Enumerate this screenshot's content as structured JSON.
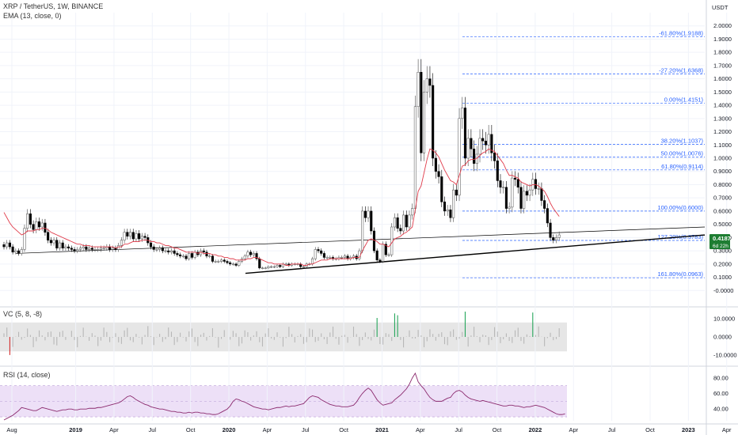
{
  "header": {
    "title": "XRP / TetherUS, 1W, BINANCE",
    "indicator": "EMA (13, close, 0)",
    "price_unit": "USDT"
  },
  "colors": {
    "up": "#4c4c4c",
    "down": "#000000",
    "ema": "#e03b4a",
    "fib": "#2962ff",
    "trend": "#000000",
    "vc_band": "#e6e6e6",
    "vc_up": "#26a65b",
    "vc_down": "#d32f2f",
    "rsi_band": "#ede0f7",
    "rsi_line": "#8b2a6e",
    "price_tag": "#1e7d32"
  },
  "price_tag": {
    "price": "0.4187",
    "countdown": "6d 22h"
  },
  "panes": {
    "vc": {
      "title": "VC (5, 8, -8)"
    },
    "rsi": {
      "title": "RSI (14, close)"
    }
  },
  "chart_data": [
    {
      "type": "candlestick",
      "title": "XRP / TetherUS, 1W, BINANCE",
      "y_unit": "USDT",
      "ylim": [
        -0.1,
        2.1
      ],
      "y_ticks": [
        "2.0000",
        "1.9000",
        "1.8000",
        "1.7000",
        "1.6000",
        "1.5000",
        "1.4000",
        "1.3000",
        "1.2000",
        "1.1000",
        "1.0000",
        "0.9000",
        "0.8000",
        "0.7000",
        "0.6000",
        "0.5000",
        "0.4000",
        "0.3000",
        "0.2000",
        "0.1000",
        "-0.0000"
      ],
      "x_ticks": [
        "Aug",
        "2019",
        "Apr",
        "Jul",
        "Oct",
        "2020",
        "Apr",
        "Jul",
        "Oct",
        "2021",
        "Apr",
        "Jul",
        "Oct",
        "2022",
        "Apr",
        "Jul",
        "Oct",
        "2023",
        "Apr"
      ],
      "x_start": "2018-08",
      "interval": "1W",
      "close": [
        0.33,
        0.36,
        0.33,
        0.29,
        0.3,
        0.28,
        0.31,
        0.47,
        0.58,
        0.5,
        0.46,
        0.52,
        0.48,
        0.51,
        0.44,
        0.38,
        0.36,
        0.38,
        0.32,
        0.36,
        0.32,
        0.33,
        0.32,
        0.31,
        0.3,
        0.31,
        0.32,
        0.33,
        0.31,
        0.32,
        0.31,
        0.31,
        0.31,
        0.32,
        0.32,
        0.33,
        0.31,
        0.32,
        0.31,
        0.34,
        0.38,
        0.44,
        0.41,
        0.44,
        0.39,
        0.43,
        0.39,
        0.41,
        0.4,
        0.36,
        0.33,
        0.31,
        0.31,
        0.32,
        0.3,
        0.3,
        0.29,
        0.3,
        0.28,
        0.27,
        0.26,
        0.26,
        0.24,
        0.28,
        0.25,
        0.29,
        0.27,
        0.3,
        0.29,
        0.26,
        0.26,
        0.22,
        0.22,
        0.22,
        0.23,
        0.22,
        0.21,
        0.2,
        0.2,
        0.19,
        0.22,
        0.24,
        0.26,
        0.29,
        0.27,
        0.28,
        0.24,
        0.17,
        0.17,
        0.17,
        0.18,
        0.18,
        0.18,
        0.19,
        0.18,
        0.2,
        0.2,
        0.19,
        0.2,
        0.2,
        0.2,
        0.18,
        0.18,
        0.2,
        0.2,
        0.24,
        0.31,
        0.3,
        0.28,
        0.25,
        0.25,
        0.25,
        0.24,
        0.24,
        0.25,
        0.25,
        0.26,
        0.24,
        0.25,
        0.26,
        0.24,
        0.3,
        0.6,
        0.55,
        0.6,
        0.45,
        0.3,
        0.23,
        0.22,
        0.35,
        0.27,
        0.27,
        0.48,
        0.55,
        0.47,
        0.45,
        0.57,
        0.48,
        0.57,
        0.62,
        1.39,
        1.65,
        1.04,
        1.5,
        1.6,
        1.55,
        1.0,
        0.9,
        0.86,
        0.67,
        0.6,
        0.61,
        0.55,
        0.76,
        0.72,
        1.3,
        1.38,
        1.0,
        1.15,
        1.07,
        0.96,
        1.03,
        1.15,
        1.13,
        1.1,
        1.18,
        1.04,
        0.98,
        0.83,
        0.78,
        0.78,
        0.62,
        0.63,
        0.85,
        0.84,
        0.78,
        0.62,
        0.75,
        0.72,
        0.76,
        0.84,
        0.77,
        0.77,
        0.68,
        0.62,
        0.51,
        0.4,
        0.38,
        0.4,
        0.42
      ],
      "ema": {
        "name": "EMA (13, close, 0)",
        "values": [
          0.59,
          0.55,
          0.51,
          0.48,
          0.46,
          0.44,
          0.42,
          0.43,
          0.45,
          0.45,
          0.45,
          0.46,
          0.46,
          0.47,
          0.47,
          0.46,
          0.44,
          0.43,
          0.42,
          0.41,
          0.4,
          0.39,
          0.38,
          0.37,
          0.36,
          0.35,
          0.35,
          0.34,
          0.34,
          0.34,
          0.33,
          0.33,
          0.33,
          0.33,
          0.33,
          0.33,
          0.33,
          0.33,
          0.32,
          0.33,
          0.33,
          0.35,
          0.35,
          0.36,
          0.37,
          0.37,
          0.37,
          0.38,
          0.38,
          0.38,
          0.37,
          0.37,
          0.36,
          0.36,
          0.35,
          0.34,
          0.34,
          0.33,
          0.32,
          0.32,
          0.31,
          0.3,
          0.29,
          0.29,
          0.29,
          0.29,
          0.28,
          0.29,
          0.28,
          0.28,
          0.28,
          0.27,
          0.27,
          0.26,
          0.26,
          0.25,
          0.25,
          0.24,
          0.24,
          0.23,
          0.23,
          0.23,
          0.23,
          0.24,
          0.24,
          0.25,
          0.25,
          0.24,
          0.23,
          0.22,
          0.21,
          0.21,
          0.2,
          0.2,
          0.2,
          0.2,
          0.19,
          0.19,
          0.2,
          0.2,
          0.2,
          0.2,
          0.19,
          0.19,
          0.2,
          0.2,
          0.21,
          0.22,
          0.23,
          0.23,
          0.23,
          0.24,
          0.24,
          0.24,
          0.24,
          0.24,
          0.24,
          0.24,
          0.24,
          0.25,
          0.25,
          0.25,
          0.3,
          0.34,
          0.38,
          0.39,
          0.38,
          0.37,
          0.35,
          0.35,
          0.34,
          0.33,
          0.36,
          0.39,
          0.4,
          0.41,
          0.43,
          0.44,
          0.46,
          0.48,
          0.61,
          0.75,
          0.79,
          0.89,
          0.99,
          1.07,
          1.06,
          1.04,
          1.01,
          0.96,
          0.91,
          0.87,
          0.83,
          0.82,
          0.8,
          0.87,
          0.94,
          0.95,
          0.98,
          0.99,
          0.99,
          1.0,
          1.02,
          1.04,
          1.05,
          1.07,
          1.06,
          1.05,
          1.02,
          0.99,
          0.96,
          0.91,
          0.87,
          0.87,
          0.86,
          0.85,
          0.82,
          0.81,
          0.8,
          0.79,
          0.8,
          0.8,
          0.79,
          0.77,
          0.75,
          0.71,
          0.66,
          0.62,
          0.59,
          0.56
        ]
      },
      "fibonacci": [
        {
          "level": "-61.80%",
          "value": 1.9188
        },
        {
          "level": "-27.20%",
          "value": 1.6368
        },
        {
          "level": "0.00%",
          "value": 1.4151
        },
        {
          "level": "38.20%",
          "value": 1.1037
        },
        {
          "level": "50.00%",
          "value": 1.0076
        },
        {
          "level": "61.80%",
          "value": 0.9114
        },
        {
          "level": "100.00%",
          "value": 0.6
        },
        {
          "level": "127.20%",
          "value": 0.3783
        },
        {
          "level": "161.80%",
          "value": 0.0963
        }
      ]
    },
    {
      "type": "bar",
      "title": "VC (5, 8, -8)",
      "ylim": [
        -14,
        14
      ],
      "y_ticks": [
        "10.0000",
        "0.0000",
        "-10.0000"
      ],
      "band": [
        -8,
        8
      ],
      "highlights": [
        {
          "index": 2,
          "value": -10,
          "color": "down"
        },
        {
          "index": 127,
          "value": 10.5,
          "color": "up"
        },
        {
          "index": 133,
          "value": 13,
          "color": "up"
        },
        {
          "index": 134,
          "value": 12,
          "color": "up"
        },
        {
          "index": 157,
          "value": 14,
          "color": "up"
        },
        {
          "index": 180,
          "value": 13.5,
          "color": "up"
        }
      ]
    },
    {
      "type": "line",
      "title": "RSI (14, close)",
      "ylim": [
        25,
        90
      ],
      "y_ticks": [
        "80.00",
        "60.00",
        "40.00"
      ],
      "band": [
        30,
        70
      ],
      "values": [
        26,
        28,
        30,
        32,
        35,
        38,
        42,
        41,
        40,
        39,
        38,
        38,
        40,
        42,
        41,
        40,
        39,
        38,
        37,
        38,
        39,
        39,
        40,
        40,
        39,
        39,
        40,
        40,
        40,
        41,
        41,
        41,
        42,
        42,
        43,
        44,
        45,
        46,
        47,
        48,
        50,
        53,
        56,
        57,
        55,
        52,
        50,
        48,
        46,
        45,
        43,
        42,
        41,
        40,
        40,
        39,
        38,
        37,
        37,
        36,
        36,
        35,
        35,
        36,
        35,
        36,
        36,
        35,
        35,
        34,
        34,
        33,
        33,
        34,
        36,
        38,
        40,
        44,
        50,
        53,
        52,
        50,
        49,
        47,
        45,
        43,
        42,
        41,
        40,
        40,
        39,
        40,
        41,
        42,
        42,
        43,
        44,
        43,
        44,
        44,
        45,
        46,
        47,
        51,
        55,
        57,
        56,
        55,
        52,
        50,
        48,
        46,
        45,
        44,
        44,
        43,
        43,
        43,
        44,
        45,
        49,
        55,
        60,
        64,
        67,
        64,
        58,
        52,
        48,
        45,
        46,
        47,
        48,
        52,
        55,
        58,
        62,
        66,
        72,
        80,
        86,
        75,
        70,
        66,
        60,
        55,
        52,
        50,
        50,
        50,
        52,
        54,
        55,
        60,
        63,
        64,
        62,
        58,
        55,
        53,
        52,
        51,
        50,
        51,
        50,
        49,
        48,
        47,
        46,
        45,
        44,
        44,
        45,
        45,
        44,
        44,
        43,
        42,
        43,
        43,
        44,
        45,
        44,
        43,
        42,
        40,
        38,
        36,
        34,
        33,
        33,
        34
      ]
    }
  ]
}
